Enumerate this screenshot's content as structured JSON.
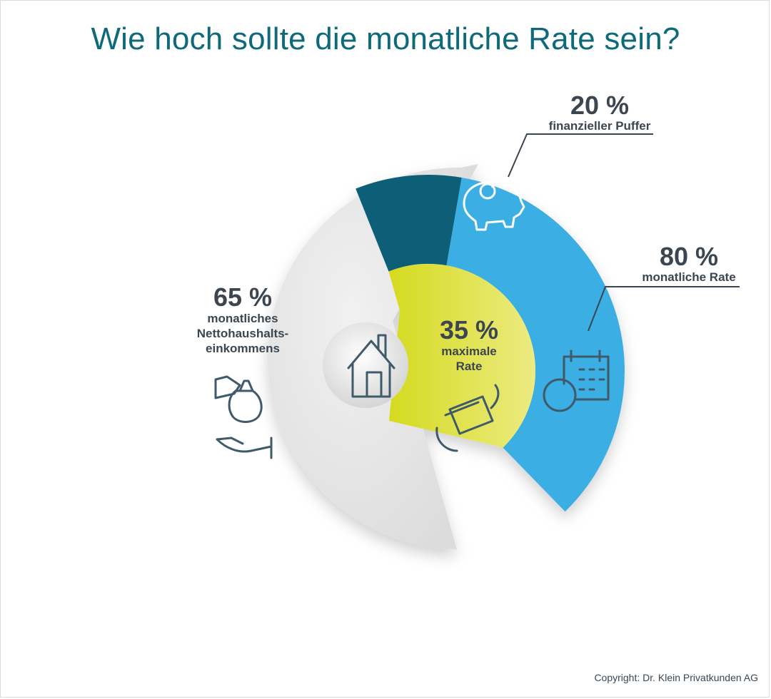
{
  "title": "Wie hoch sollte die monatliche Rate sein?",
  "copyright": "Copyright: Dr. Klein Privatkunden AG",
  "colors": {
    "title": "#0e6a7a",
    "text": "#3c4650",
    "income": "#e4e4e4",
    "rate_max": "#dfe34a",
    "monthly_rate": "#3aaee4",
    "buffer": "#0b5f78"
  },
  "chart_data": {
    "type": "pie",
    "title": "Wie hoch sollte die monatliche Rate sein?",
    "rings": [
      {
        "ring": "inner",
        "slices": [
          {
            "label": "monatliches Nettohaushalts-einkommens",
            "value": 65,
            "percent_text": "65 %",
            "color": "#e4e4e4",
            "icons": [
              "money-bag-icon",
              "open-hand-icon"
            ]
          },
          {
            "label": "maximale Rate",
            "value": 35,
            "percent_text": "35 %",
            "color": "#dfe34a",
            "icons": [
              "money-cycle-icon"
            ]
          }
        ]
      },
      {
        "ring": "outer",
        "parent": "maximale Rate",
        "slices": [
          {
            "label": "monatliche Rate",
            "value": 80,
            "percent_text": "80 %",
            "color": "#3aaee4",
            "icons": [
              "calendar-euro-icon"
            ]
          },
          {
            "label": "finanzieller Puffer",
            "value": 20,
            "percent_text": "20 %",
            "color": "#0b5f78",
            "icons": [
              "piggy-bank-icon"
            ]
          }
        ]
      }
    ],
    "center_icon": "house-icon"
  },
  "labels": {
    "income": {
      "pct": "65 %",
      "line1": "monatliches",
      "line2": "Nettohaushalts-",
      "line3": "einkommens"
    },
    "rate": {
      "pct": "35 %",
      "line1": "maximale",
      "line2": "Rate"
    },
    "buffer": {
      "pct": "20 %",
      "line1": "finanzieller Puffer"
    },
    "monthly": {
      "pct": "80 %",
      "line1": "monatliche Rate"
    }
  }
}
